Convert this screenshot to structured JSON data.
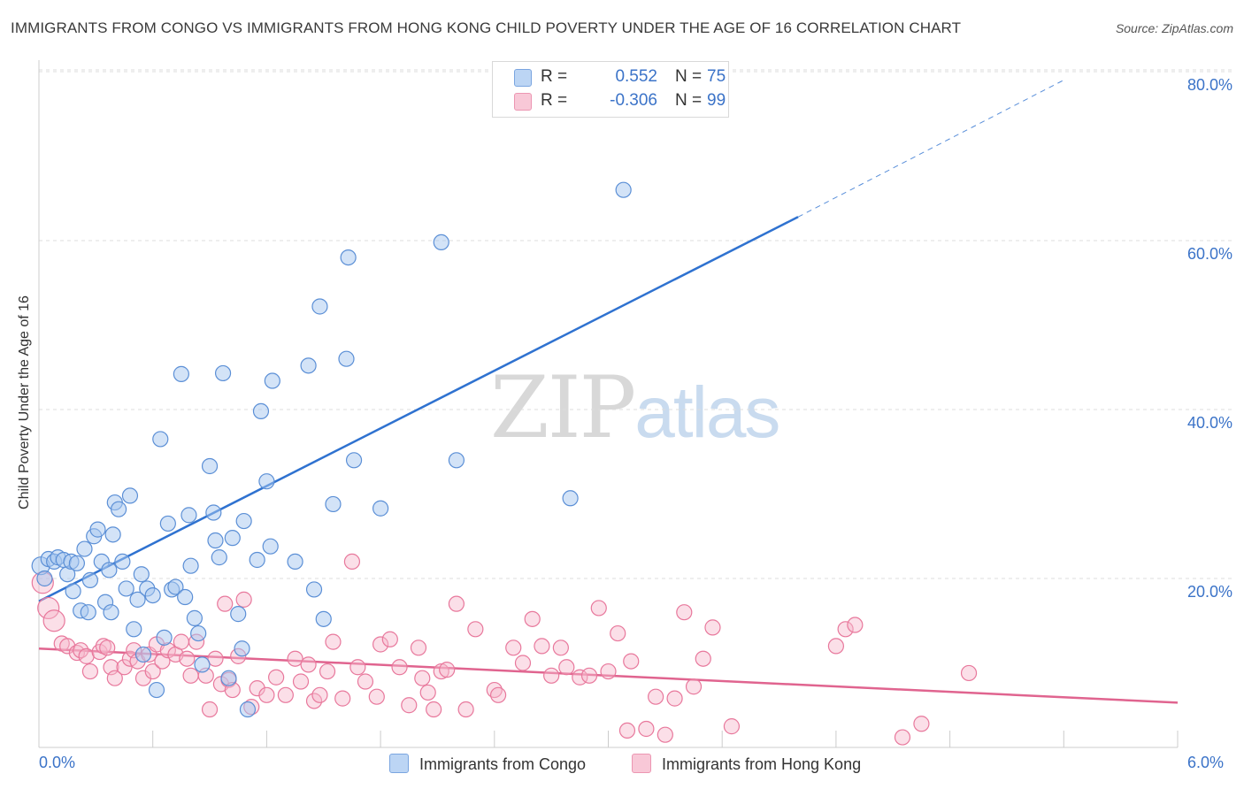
{
  "title": "IMMIGRANTS FROM CONGO VS IMMIGRANTS FROM HONG KONG CHILD POVERTY UNDER THE AGE OF 16 CORRELATION CHART",
  "source": "Source: ZipAtlas.com",
  "watermark": {
    "zip": "ZIP",
    "atlas": "atlas"
  },
  "colors": {
    "congo_fill": "#a8c8f0",
    "congo_stroke": "#5b8fd6",
    "congo_line": "#2f72d0",
    "hk_fill": "#f6b8cc",
    "hk_stroke": "#e8789c",
    "hk_line": "#e0648f",
    "axis_text": "#3b73c8",
    "grid": "#dddddd"
  },
  "legend": {
    "rows": [
      {
        "r_label": "R =",
        "r_value": "0.552",
        "n_label": "N =",
        "n_value": "75"
      },
      {
        "r_label": "R =",
        "r_value": "-0.306",
        "n_label": "N =",
        "n_value": "99"
      }
    ]
  },
  "chart_data": {
    "type": "scatter",
    "title": "IMMIGRANTS FROM CONGO VS IMMIGRANTS FROM HONG KONG CHILD POVERTY UNDER THE AGE OF 16 CORRELATION CHART",
    "xlabel": "",
    "ylabel": "Child Poverty Under the Age of 16",
    "x_unit": "%",
    "y_unit": "%",
    "xlim": [
      0.0,
      6.0
    ],
    "ylim": [
      0.0,
      82.0
    ],
    "x_tick_labels": [
      "0.0%",
      "6.0%"
    ],
    "y_ticks": [
      20,
      40,
      60,
      80
    ],
    "y_tick_labels": [
      "20.0%",
      "40.0%",
      "60.0%",
      "80.0%"
    ],
    "grid": true,
    "legend_placement": "top-center",
    "series": [
      {
        "name": "Immigrants from Congo",
        "r": 0.552,
        "n": 75,
        "trend": {
          "x0": 0.0,
          "y0": 17.3,
          "x1": 4.0,
          "y1": 62.8,
          "dashed_to_x": 5.4,
          "dashed_to_y": 79.0
        },
        "points": [
          [
            0.01,
            21.5
          ],
          [
            0.03,
            20.0
          ],
          [
            0.05,
            22.3
          ],
          [
            0.08,
            22.0
          ],
          [
            0.1,
            22.5
          ],
          [
            0.13,
            22.2
          ],
          [
            0.15,
            20.5
          ],
          [
            0.17,
            22.0
          ],
          [
            0.18,
            18.5
          ],
          [
            0.2,
            21.8
          ],
          [
            0.22,
            16.2
          ],
          [
            0.24,
            23.5
          ],
          [
            0.26,
            16.0
          ],
          [
            0.27,
            19.8
          ],
          [
            0.29,
            25.0
          ],
          [
            0.31,
            25.8
          ],
          [
            0.33,
            22.0
          ],
          [
            0.35,
            17.2
          ],
          [
            0.37,
            21.0
          ],
          [
            0.39,
            25.2
          ],
          [
            0.4,
            29.0
          ],
          [
            0.42,
            28.2
          ],
          [
            0.44,
            22.0
          ],
          [
            0.46,
            18.8
          ],
          [
            0.48,
            29.8
          ],
          [
            0.5,
            14.0
          ],
          [
            0.52,
            17.5
          ],
          [
            0.54,
            20.5
          ],
          [
            0.55,
            11.0
          ],
          [
            0.57,
            18.8
          ],
          [
            0.6,
            18.0
          ],
          [
            0.62,
            6.8
          ],
          [
            0.64,
            36.5
          ],
          [
            0.66,
            13.0
          ],
          [
            0.68,
            26.5
          ],
          [
            0.7,
            18.7
          ],
          [
            0.72,
            19.0
          ],
          [
            0.75,
            44.2
          ],
          [
            0.77,
            17.8
          ],
          [
            0.79,
            27.5
          ],
          [
            0.8,
            21.5
          ],
          [
            0.82,
            15.3
          ],
          [
            0.84,
            13.5
          ],
          [
            0.86,
            9.8
          ],
          [
            0.9,
            33.3
          ],
          [
            0.92,
            27.8
          ],
          [
            0.93,
            24.5
          ],
          [
            0.95,
            22.5
          ],
          [
            0.97,
            44.3
          ],
          [
            1.0,
            8.2
          ],
          [
            1.02,
            24.8
          ],
          [
            1.05,
            15.8
          ],
          [
            1.07,
            11.7
          ],
          [
            1.08,
            26.8
          ],
          [
            1.1,
            4.5
          ],
          [
            1.15,
            22.2
          ],
          [
            1.17,
            39.8
          ],
          [
            1.2,
            31.5
          ],
          [
            1.22,
            23.8
          ],
          [
            1.23,
            43.4
          ],
          [
            1.35,
            22.0
          ],
          [
            1.42,
            45.2
          ],
          [
            1.45,
            18.7
          ],
          [
            1.48,
            52.2
          ],
          [
            1.5,
            15.2
          ],
          [
            1.55,
            28.8
          ],
          [
            1.62,
            46.0
          ],
          [
            1.63,
            58.0
          ],
          [
            1.66,
            34.0
          ],
          [
            1.8,
            28.3
          ],
          [
            2.12,
            59.8
          ],
          [
            2.2,
            34.0
          ],
          [
            2.8,
            29.5
          ],
          [
            3.08,
            66.0
          ],
          [
            0.38,
            16.0
          ]
        ]
      },
      {
        "name": "Immigrants from Hong Kong",
        "r": -0.306,
        "n": 99,
        "trend": {
          "x0": 0.0,
          "y0": 11.7,
          "x1": 6.0,
          "y1": 5.3
        },
        "points": [
          [
            0.02,
            19.5
          ],
          [
            0.05,
            16.5
          ],
          [
            0.08,
            15.0
          ],
          [
            0.12,
            12.3
          ],
          [
            0.15,
            12.0
          ],
          [
            0.2,
            11.2
          ],
          [
            0.22,
            11.5
          ],
          [
            0.25,
            10.8
          ],
          [
            0.27,
            9.0
          ],
          [
            0.32,
            11.3
          ],
          [
            0.34,
            12.0
          ],
          [
            0.36,
            11.8
          ],
          [
            0.38,
            9.5
          ],
          [
            0.4,
            8.2
          ],
          [
            0.45,
            9.5
          ],
          [
            0.48,
            10.5
          ],
          [
            0.5,
            11.5
          ],
          [
            0.52,
            10.2
          ],
          [
            0.55,
            8.2
          ],
          [
            0.58,
            11.0
          ],
          [
            0.6,
            9.0
          ],
          [
            0.62,
            12.2
          ],
          [
            0.65,
            10.2
          ],
          [
            0.68,
            11.5
          ],
          [
            0.72,
            11.0
          ],
          [
            0.75,
            12.5
          ],
          [
            0.78,
            10.5
          ],
          [
            0.8,
            8.5
          ],
          [
            0.83,
            12.5
          ],
          [
            0.88,
            8.5
          ],
          [
            0.9,
            4.5
          ],
          [
            0.93,
            10.5
          ],
          [
            0.96,
            7.5
          ],
          [
            0.98,
            17.0
          ],
          [
            1.0,
            8.0
          ],
          [
            1.02,
            6.8
          ],
          [
            1.05,
            10.8
          ],
          [
            1.08,
            17.5
          ],
          [
            1.12,
            4.8
          ],
          [
            1.15,
            7.0
          ],
          [
            1.2,
            6.2
          ],
          [
            1.25,
            8.3
          ],
          [
            1.3,
            6.2
          ],
          [
            1.35,
            10.5
          ],
          [
            1.38,
            7.8
          ],
          [
            1.42,
            9.8
          ],
          [
            1.45,
            5.5
          ],
          [
            1.48,
            6.2
          ],
          [
            1.52,
            9.0
          ],
          [
            1.55,
            12.5
          ],
          [
            1.6,
            5.8
          ],
          [
            1.65,
            22.0
          ],
          [
            1.68,
            9.5
          ],
          [
            1.72,
            7.8
          ],
          [
            1.78,
            6.0
          ],
          [
            1.8,
            12.2
          ],
          [
            1.85,
            12.8
          ],
          [
            1.9,
            9.5
          ],
          [
            1.95,
            5.0
          ],
          [
            2.0,
            11.8
          ],
          [
            2.02,
            8.2
          ],
          [
            2.05,
            6.5
          ],
          [
            2.08,
            4.5
          ],
          [
            2.12,
            9.0
          ],
          [
            2.15,
            9.2
          ],
          [
            2.2,
            17.0
          ],
          [
            2.25,
            4.5
          ],
          [
            2.3,
            14.0
          ],
          [
            2.4,
            6.8
          ],
          [
            2.42,
            6.2
          ],
          [
            2.5,
            11.8
          ],
          [
            2.55,
            10.0
          ],
          [
            2.6,
            15.2
          ],
          [
            2.65,
            12.0
          ],
          [
            2.7,
            8.5
          ],
          [
            2.75,
            11.8
          ],
          [
            2.78,
            9.5
          ],
          [
            2.85,
            8.3
          ],
          [
            2.9,
            8.5
          ],
          [
            2.95,
            16.5
          ],
          [
            3.0,
            9.0
          ],
          [
            3.05,
            13.5
          ],
          [
            3.1,
            2.0
          ],
          [
            3.12,
            10.2
          ],
          [
            3.2,
            2.2
          ],
          [
            3.25,
            6.0
          ],
          [
            3.3,
            1.5
          ],
          [
            3.35,
            5.8
          ],
          [
            3.4,
            16.0
          ],
          [
            3.45,
            7.2
          ],
          [
            3.5,
            10.5
          ],
          [
            3.55,
            14.2
          ],
          [
            3.65,
            2.5
          ],
          [
            4.2,
            12.0
          ],
          [
            4.25,
            14.0
          ],
          [
            4.3,
            14.5
          ],
          [
            4.55,
            1.2
          ],
          [
            4.65,
            2.8
          ],
          [
            4.9,
            8.8
          ]
        ]
      }
    ]
  },
  "bottom_legend": [
    {
      "label": "Immigrants from Congo"
    },
    {
      "label": "Immigrants from Hong Kong"
    }
  ],
  "x_axis": {
    "min_label": "0.0%",
    "max_label": "6.0%"
  },
  "y_axis": {
    "label": "Child Poverty Under the Age of 16"
  }
}
